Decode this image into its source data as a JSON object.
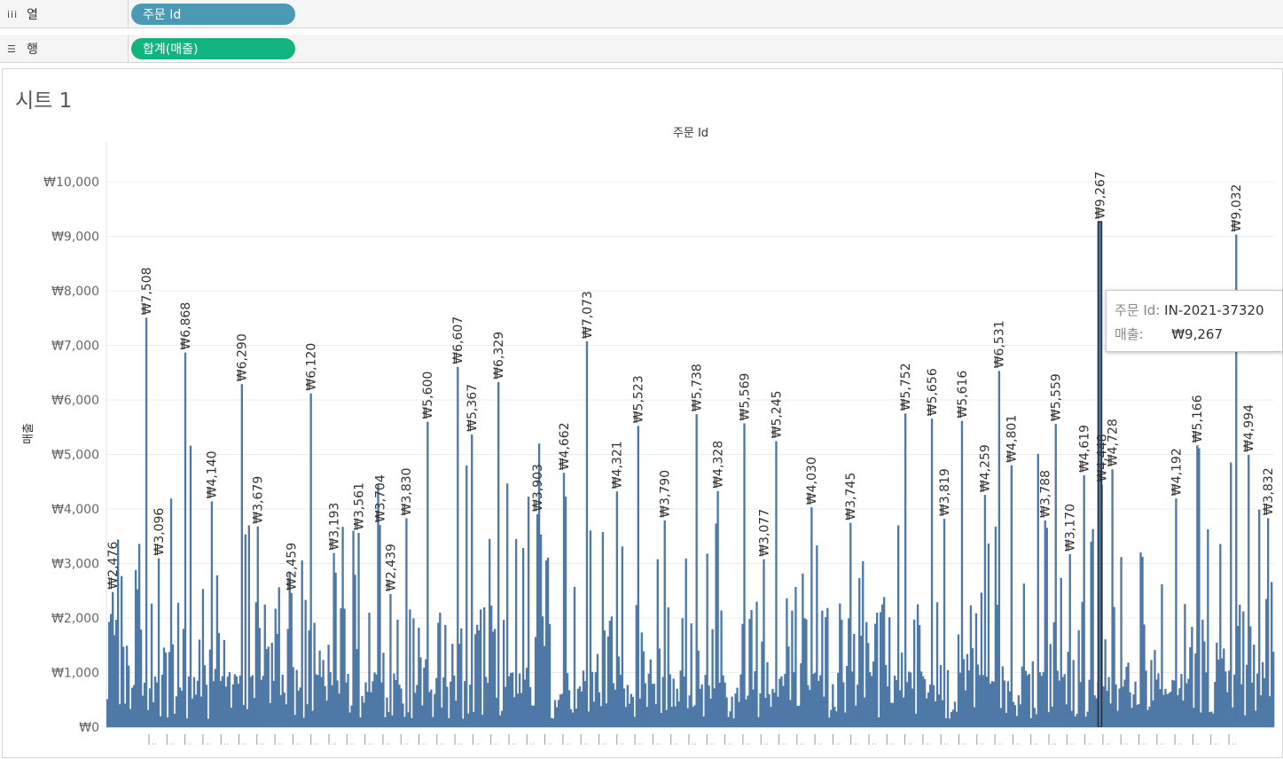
{
  "shelves": {
    "columns": {
      "icon": "iii",
      "label": "열",
      "pill": "주문 Id"
    },
    "rows": {
      "icon": "☰",
      "label": "행",
      "pill": "합계(매출)"
    }
  },
  "sheet": {
    "title": "시트 1"
  },
  "colors": {
    "bar": "#4e79a7",
    "highlight_outline": "#1f2c3d",
    "blue_pill": "#4a9ab5",
    "green_pill": "#12b37f"
  },
  "tooltip": {
    "key1": "주문 Id:",
    "val1": "IN-2021-37320",
    "key2": "매출:",
    "val2": "₩9,267"
  },
  "chart_data": {
    "type": "bar",
    "title": "주문 Id",
    "xlabel": "주문 Id",
    "ylabel": "매출",
    "ylim": [
      0,
      10500
    ],
    "yticks": [
      0,
      1000,
      2000,
      3000,
      4000,
      5000,
      6000,
      7000,
      8000,
      9000,
      10000
    ],
    "ytick_labels": [
      "₩0",
      "₩1,000",
      "₩2,000",
      "₩3,000",
      "₩4,000",
      "₩5,000",
      "₩6,000",
      "₩7,000",
      "₩8,000",
      "₩9,000",
      "₩10,000"
    ],
    "grid": true,
    "bar_count": 660,
    "selected_order": "IN-2021-37320",
    "labeled_values": [
      {
        "at": 0.005,
        "value": 2476,
        "label": "₩2,476"
      },
      {
        "at": 0.034,
        "value": 7508,
        "label": "₩7,508"
      },
      {
        "at": 0.044,
        "value": 3096,
        "label": "₩3,096"
      },
      {
        "at": 0.067,
        "value": 6868,
        "label": "₩6,868"
      },
      {
        "at": 0.089,
        "value": 4140,
        "label": "₩4,140"
      },
      {
        "at": 0.115,
        "value": 6290,
        "label": "₩6,290"
      },
      {
        "at": 0.129,
        "value": 3679,
        "label": "₩3,679"
      },
      {
        "at": 0.158,
        "value": 2459,
        "label": "₩2,459"
      },
      {
        "at": 0.174,
        "value": 6120,
        "label": "₩6,120"
      },
      {
        "at": 0.194,
        "value": 3193,
        "label": "₩3,193"
      },
      {
        "at": 0.216,
        "value": 3561,
        "label": "₩3,561"
      },
      {
        "at": 0.233,
        "value": 3704,
        "label": "₩3,704"
      },
      {
        "at": 0.243,
        "value": 2439,
        "label": "₩2,439"
      },
      {
        "at": 0.257,
        "value": 3830,
        "label": "₩3,830"
      },
      {
        "at": 0.275,
        "value": 5600,
        "label": "₩5,600"
      },
      {
        "at": 0.301,
        "value": 6607,
        "label": "₩6,607"
      },
      {
        "at": 0.312,
        "value": 5367,
        "label": "₩5,367"
      },
      {
        "at": 0.335,
        "value": 6329,
        "label": "₩6,329"
      },
      {
        "at": 0.369,
        "value": 3903,
        "label": "₩3,903"
      },
      {
        "at": 0.391,
        "value": 4662,
        "label": "₩4,662"
      },
      {
        "at": 0.411,
        "value": 7073,
        "label": "₩7,073"
      },
      {
        "at": 0.437,
        "value": 4321,
        "label": "₩4,321"
      },
      {
        "at": 0.455,
        "value": 5523,
        "label": "₩5,523"
      },
      {
        "at": 0.478,
        "value": 3790,
        "label": "₩3,790"
      },
      {
        "at": 0.505,
        "value": 5738,
        "label": "₩5,738"
      },
      {
        "at": 0.523,
        "value": 4328,
        "label": "₩4,328"
      },
      {
        "at": 0.547,
        "value": 5569,
        "label": "₩5,569"
      },
      {
        "at": 0.563,
        "value": 3077,
        "label": "₩3,077"
      },
      {
        "at": 0.574,
        "value": 5245,
        "label": "₩5,245"
      },
      {
        "at": 0.604,
        "value": 4030,
        "label": "₩4,030"
      },
      {
        "at": 0.637,
        "value": 3745,
        "label": "₩3,745"
      },
      {
        "at": 0.685,
        "value": 5752,
        "label": "₩5,752"
      },
      {
        "at": 0.707,
        "value": 5656,
        "label": "₩5,656"
      },
      {
        "at": 0.718,
        "value": 3819,
        "label": "₩3,819"
      },
      {
        "at": 0.733,
        "value": 5616,
        "label": "₩5,616"
      },
      {
        "at": 0.752,
        "value": 4259,
        "label": "₩4,259"
      },
      {
        "at": 0.765,
        "value": 6531,
        "label": "₩6,531"
      },
      {
        "at": 0.776,
        "value": 4801,
        "label": "₩4,801"
      },
      {
        "at": 0.804,
        "value": 3788,
        "label": "₩3,788"
      },
      {
        "at": 0.813,
        "value": 5559,
        "label": "₩5,559"
      },
      {
        "at": 0.826,
        "value": 3170,
        "label": "₩3,170"
      },
      {
        "at": 0.837,
        "value": 4619,
        "label": "₩4,619"
      },
      {
        "at": 0.853,
        "value": 4448,
        "label": "₩4,448"
      },
      {
        "at": 0.852,
        "value": 9267,
        "label": "₩9,267",
        "selected": true
      },
      {
        "at": 0.862,
        "value": 4728,
        "label": "₩4,728"
      },
      {
        "at": 0.917,
        "value": 4192,
        "label": "₩4,192"
      },
      {
        "at": 0.934,
        "value": 5166,
        "label": "₩5,166"
      },
      {
        "at": 0.968,
        "value": 9032,
        "label": "₩9,032"
      },
      {
        "at": 0.978,
        "value": 4994,
        "label": "₩4,994"
      },
      {
        "at": 0.995,
        "value": 3832,
        "label": "₩3,832"
      }
    ]
  }
}
